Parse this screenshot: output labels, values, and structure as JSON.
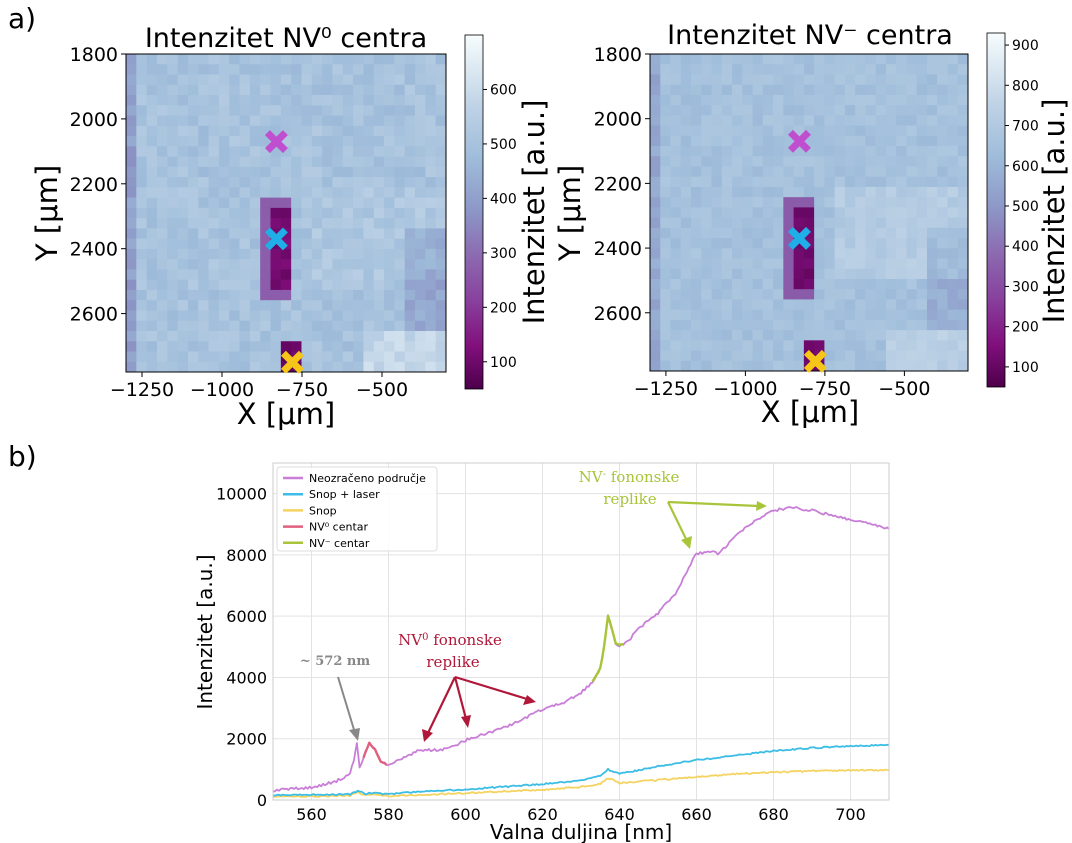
{
  "panel_labels": [
    "a)",
    "b)"
  ],
  "chart_data": [
    {
      "type": "heatmap",
      "title": "Intenzitet NV⁰ centra",
      "xlabel": "X [μm]",
      "ylabel": "Y [μm]",
      "colorbar_label": "Intenzitet [a.u.]",
      "xlim": [
        -1300,
        -300
      ],
      "ylim": [
        1800,
        2780
      ],
      "x_ticks": [
        -1250,
        -1000,
        -750,
        -500
      ],
      "x_tick_labels": [
        "−1250",
        "−1000",
        "−750",
        "−500"
      ],
      "y_ticks": [
        1800,
        2000,
        2200,
        2400,
        2600
      ],
      "y_tick_labels": [
        "1800",
        "2000",
        "2200",
        "2400",
        "2600"
      ],
      "colorbar_range": [
        50,
        700
      ],
      "colorbar_ticks": [
        100,
        200,
        300,
        400,
        500,
        600
      ],
      "colorbar_tick_labels": [
        "100",
        "200",
        "300",
        "400",
        "500",
        "600"
      ],
      "background_level": 500,
      "dark_regions": [
        {
          "x": [
            -860,
            -790
          ],
          "y": [
            2270,
            2540
          ],
          "value": 90
        },
        {
          "x": [
            -800,
            -750
          ],
          "y": [
            2700,
            2780
          ],
          "value": 70
        }
      ],
      "markers": [
        {
          "x": -830,
          "y": 2070,
          "color": "#c04fcf"
        },
        {
          "x": -830,
          "y": 2370,
          "color": "#1faee8"
        },
        {
          "x": -780,
          "y": 2750,
          "color": "#f5c518"
        }
      ],
      "colormap": "BuPu_r"
    },
    {
      "type": "heatmap",
      "title": "Intenzitet NV⁻ centra",
      "xlabel": "X [μm]",
      "ylabel": "Y [μm]",
      "colorbar_label": "Intenzitet [a.u.]",
      "xlim": [
        -1300,
        -300
      ],
      "ylim": [
        1800,
        2780
      ],
      "x_ticks": [
        -1250,
        -1000,
        -750,
        -500
      ],
      "x_tick_labels": [
        "−1250",
        "−1000",
        "−750",
        "−500"
      ],
      "y_ticks": [
        1800,
        2000,
        2200,
        2400,
        2600
      ],
      "y_tick_labels": [
        "1800",
        "2000",
        "2200",
        "2400",
        "2600"
      ],
      "colorbar_range": [
        50,
        930
      ],
      "colorbar_ticks": [
        100,
        200,
        300,
        400,
        500,
        600,
        700,
        800,
        900
      ],
      "colorbar_tick_labels": [
        "100",
        "200",
        "300",
        "400",
        "500",
        "600",
        "700",
        "800",
        "900"
      ],
      "background_level": 650,
      "dark_regions": [
        {
          "x": [
            -860,
            -790
          ],
          "y": [
            2270,
            2540
          ],
          "value": 100
        },
        {
          "x": [
            -800,
            -750
          ],
          "y": [
            2700,
            2780
          ],
          "value": 100
        }
      ],
      "markers": [
        {
          "x": -830,
          "y": 2070,
          "color": "#c04fcf"
        },
        {
          "x": -830,
          "y": 2370,
          "color": "#1faee8"
        },
        {
          "x": -780,
          "y": 2750,
          "color": "#f5c518"
        }
      ],
      "colormap": "BuPu_r"
    },
    {
      "type": "line",
      "xlabel": "Valna duljina [nm]",
      "ylabel": "Intenzitet [a.u.]",
      "xlim": [
        550,
        710
      ],
      "ylim": [
        0,
        11000
      ],
      "x_ticks": [
        560,
        580,
        600,
        620,
        640,
        660,
        680,
        700
      ],
      "y_ticks": [
        0,
        2000,
        4000,
        6000,
        8000,
        10000
      ],
      "grid": true,
      "legend_position": "top-left",
      "legend": [
        {
          "label": "Neozračeno područje",
          "color": "#c97ed8"
        },
        {
          "label": "Snop + laser",
          "color": "#3bbde5"
        },
        {
          "label": "Snop",
          "color": "#f4d360"
        },
        {
          "label": "NV⁰ centar",
          "color": "#e0607e"
        },
        {
          "label": "NV⁻ centar",
          "color": "#a8c53a"
        }
      ],
      "series": [
        {
          "name": "Neozračeno područje",
          "color": "#c97ed8",
          "x": [
            550,
            560,
            565,
            568,
            570,
            571,
            571.8,
            572.5,
            573.5,
            575,
            576.5,
            578,
            580,
            582,
            585,
            588,
            590,
            593,
            596,
            600,
            605,
            610,
            615,
            620,
            625,
            630,
            633,
            635,
            636,
            637,
            638,
            639,
            640,
            642,
            645,
            650,
            655,
            658,
            660,
            663,
            666,
            670,
            675,
            680,
            685,
            690,
            695,
            700,
            705,
            710
          ],
          "y": [
            320,
            420,
            560,
            690,
            900,
            1300,
            1820,
            1050,
            1400,
            1850,
            1650,
            1250,
            1150,
            1280,
            1450,
            1620,
            1640,
            1620,
            1700,
            1950,
            2150,
            2350,
            2650,
            2950,
            3150,
            3500,
            3850,
            4300,
            5000,
            6000,
            5600,
            5100,
            5050,
            5150,
            5600,
            6100,
            6800,
            7600,
            8050,
            8100,
            8050,
            8600,
            9100,
            9450,
            9550,
            9450,
            9300,
            9150,
            9000,
            8850
          ]
        },
        {
          "name": "Snop + laser",
          "color": "#3bbde5",
          "x": [
            550,
            560,
            570,
            572,
            574,
            576,
            578,
            580,
            590,
            600,
            610,
            620,
            630,
            635,
            637,
            640,
            650,
            660,
            670,
            680,
            690,
            700,
            710
          ],
          "y": [
            160,
            170,
            190,
            300,
            200,
            240,
            200,
            200,
            280,
            350,
            430,
            520,
            650,
            800,
            1000,
            850,
            1100,
            1300,
            1450,
            1600,
            1700,
            1750,
            1800
          ]
        },
        {
          "name": "Snop",
          "color": "#f4d360",
          "x": [
            550,
            560,
            570,
            572,
            574,
            576,
            578,
            580,
            590,
            600,
            610,
            620,
            630,
            635,
            637,
            640,
            650,
            660,
            670,
            680,
            690,
            700,
            710
          ],
          "y": [
            110,
            120,
            140,
            250,
            150,
            180,
            150,
            130,
            180,
            220,
            280,
            330,
            430,
            520,
            720,
            560,
            650,
            750,
            850,
            900,
            950,
            970,
            980
          ]
        },
        {
          "name": "NV⁰ centar",
          "color": "#e0607e",
          "x": [
            573.5,
            575,
            576.5,
            578,
            579.5
          ],
          "y": [
            1400,
            1850,
            1650,
            1250,
            1150
          ]
        },
        {
          "name": "NV⁻ centar",
          "color": "#a8c53a",
          "x": [
            633,
            635,
            636,
            637,
            638,
            639,
            640,
            641
          ],
          "y": [
            3850,
            4300,
            5000,
            6000,
            5600,
            5100,
            5050,
            5080
          ]
        }
      ],
      "annotations": [
        {
          "text": "~ 572 nm",
          "color": "#888888"
        },
        {
          "text_main": "NV",
          "text_sup": "0",
          "text_rest": " fononske",
          "line2": "replike",
          "color": "#b0183a"
        },
        {
          "text_main": "NV",
          "text_sup": "-",
          "text_rest": " fononske",
          "line2": "replike",
          "color": "#a8c53a"
        }
      ]
    }
  ]
}
